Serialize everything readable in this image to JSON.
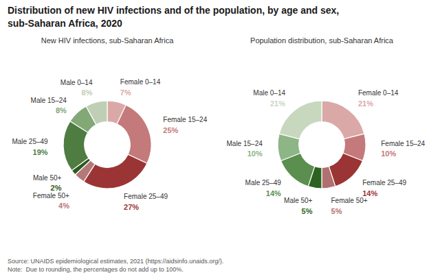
{
  "title": "Distribution of new HIV infections and of the population, by age and sex,\nsub-Saharan Africa, 2020",
  "annotations": [
    "Source: UNAIDS epidemiological estimates, 2021 (https://aidsinfo.unaids.org/).\nNote:  Due to rounding, the percentages do not add up to 100%."
  ],
  "chart_data": [
    {
      "type": "donut",
      "title": "New HIV infections, sub-Saharan Africa",
      "categories": [
        "Female 0–14",
        "Female 15–24",
        "Female 25–49",
        "Female 50+",
        "Male 50+",
        "Male 25–49",
        "Male 15–24",
        "Male 0–14"
      ],
      "values": [
        7,
        25,
        27,
        4,
        2,
        19,
        8,
        8
      ],
      "value_labels": [
        "7%",
        "25%",
        "27%",
        "4%",
        "2%",
        "19%",
        "8%",
        "8%"
      ],
      "colors": [
        "#dba8a8",
        "#c47a7a",
        "#9b3535",
        "#b57878",
        "#2d5a1e",
        "#4e7c41",
        "#82a876",
        "#bfcfb5"
      ],
      "data_labels": true
    },
    {
      "type": "donut",
      "title": "Population distribution, sub-Saharan Africa",
      "categories": [
        "Female 0–14",
        "Female 15–24",
        "Female 25–49",
        "Female 50+",
        "Male 50+",
        "Male 25–49",
        "Male 15–24",
        "Male 0–14"
      ],
      "values": [
        21,
        10,
        14,
        5,
        5,
        14,
        10,
        21
      ],
      "value_labels": [
        "21%",
        "10%",
        "14%",
        "5%",
        "5%",
        "14%",
        "10%",
        "21%"
      ],
      "colors": [
        "#dba8a8",
        "#c47a7a",
        "#9b3535",
        "#b07070",
        "#2d6320",
        "#5a8f4f",
        "#8db585",
        "#c8d8bf"
      ],
      "data_labels": true
    }
  ]
}
